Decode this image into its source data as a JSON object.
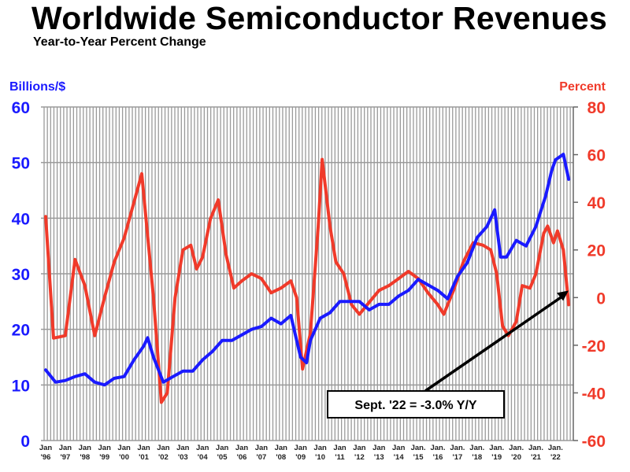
{
  "chart_data": {
    "type": "line",
    "title": "Worldwide Semiconductor Revenues",
    "subtitle": "Year-to-Year Percent Change",
    "y_left_label": "Billions/$",
    "y_right_label": "Percent",
    "y_left_range": [
      0,
      60
    ],
    "y_right_range": [
      -60,
      80
    ],
    "y_left_ticks": [
      "0",
      "10",
      "20",
      "30",
      "40",
      "50",
      "60"
    ],
    "y_right_ticks": [
      "-60",
      "-40",
      "-20",
      "0",
      "20",
      "40",
      "60",
      "80"
    ],
    "x_tick_labels": [
      [
        "Jan",
        "'96"
      ],
      [
        "Jan",
        "'97"
      ],
      [
        "Jan",
        "'98"
      ],
      [
        "Jan",
        "'99"
      ],
      [
        "Jan",
        "'00"
      ],
      [
        "Jan",
        "'01"
      ],
      [
        "Jan",
        "'02"
      ],
      [
        "Jan",
        "'03"
      ],
      [
        "Jan",
        "'04"
      ],
      [
        "Jan",
        "'05"
      ],
      [
        "Jan",
        "'06"
      ],
      [
        "Jan",
        "'07"
      ],
      [
        "Jan",
        "'08"
      ],
      [
        "Jan",
        "'09"
      ],
      [
        "Jan",
        "'10"
      ],
      [
        "Jan",
        "'11"
      ],
      [
        "Jan",
        "'12"
      ],
      [
        "Jan",
        "'13"
      ],
      [
        "Jan",
        "'14"
      ],
      [
        "Jan.",
        "'15"
      ],
      [
        "Jan.",
        "'16"
      ],
      [
        "Jan.",
        "'17"
      ],
      [
        "Jan.",
        "'18"
      ],
      [
        "Jan.",
        "'19"
      ],
      [
        "Jan.",
        "'20"
      ],
      [
        "Jan.",
        "'21"
      ],
      [
        "Jan.",
        "'22"
      ]
    ],
    "grid": "vertical lines plus horizontal at left-axis ticks",
    "colors": {
      "revenue": "#1a1aff",
      "percent": "#f03a2a",
      "grid": "#9a9a9a"
    },
    "series": [
      {
        "axis": "left",
        "x": [
          1996.0,
          1996.5,
          1997.0,
          1997.5,
          1998.0,
          1998.5,
          1999.0,
          1999.5,
          2000.0,
          2000.5,
          2001.0,
          2001.2,
          2001.5,
          2002.0,
          2002.5,
          2003.0,
          2003.5,
          2004.0,
          2004.5,
          2005.0,
          2005.5,
          2006.0,
          2006.5,
          2007.0,
          2007.5,
          2008.0,
          2008.5,
          2009.0,
          2009.3,
          2009.5,
          2010.0,
          2010.5,
          2011.0,
          2011.5,
          2012.0,
          2012.5,
          2013.0,
          2013.5,
          2014.0,
          2014.5,
          2015.0,
          2015.5,
          2016.0,
          2016.5,
          2017.0,
          2017.5,
          2018.0,
          2018.5,
          2018.9,
          2019.2,
          2019.5,
          2020.0,
          2020.5,
          2021.0,
          2021.5,
          2021.8,
          2022.0,
          2022.4,
          2022.67
        ],
        "values": [
          12.7,
          10.5,
          10.8,
          11.5,
          12,
          10.5,
          10,
          11.2,
          11.5,
          14.5,
          17,
          18.5,
          15,
          10.5,
          11.5,
          12.5,
          12.5,
          14.5,
          16,
          18,
          18,
          19,
          20,
          20.5,
          22,
          21,
          22.5,
          15,
          14,
          18,
          22,
          23,
          25,
          25,
          25,
          23.5,
          24.5,
          24.5,
          26,
          27,
          29,
          28,
          27,
          25.5,
          29.5,
          32,
          36.5,
          38.5,
          41.5,
          33,
          33,
          36,
          35,
          38.5,
          44,
          48.5,
          50.5,
          51.5,
          47
        ]
      },
      {
        "axis": "right",
        "x": [
          1996.0,
          1996.4,
          1997.0,
          1997.5,
          1998.0,
          1998.5,
          1999.0,
          1999.5,
          2000.0,
          2000.5,
          2000.9,
          2001.5,
          2001.9,
          2002.2,
          2002.6,
          2003.0,
          2003.4,
          2003.7,
          2004.0,
          2004.4,
          2004.8,
          2005.2,
          2005.6,
          2006.0,
          2006.5,
          2007.0,
          2007.5,
          2008.0,
          2008.5,
          2008.8,
          2009.1,
          2009.5,
          2009.9,
          2010.1,
          2010.5,
          2010.8,
          2011.2,
          2011.6,
          2012.0,
          2012.5,
          2013.0,
          2013.5,
          2014.0,
          2014.5,
          2015.0,
          2015.5,
          2016.0,
          2016.3,
          2016.8,
          2017.3,
          2017.8,
          2018.3,
          2018.7,
          2019.0,
          2019.3,
          2019.6,
          2020.0,
          2020.3,
          2020.7,
          2021.0,
          2021.4,
          2021.6,
          2021.9,
          2022.1,
          2022.4,
          2022.67
        ],
        "values": [
          34,
          -17,
          -16,
          16,
          5,
          -16,
          0,
          15,
          25,
          40,
          52,
          0,
          -44,
          -40,
          0,
          20,
          22,
          12,
          17,
          33,
          41,
          18,
          4,
          7,
          10,
          8,
          2,
          4,
          7,
          0,
          -30,
          -15,
          30,
          58,
          30,
          15,
          10,
          -3,
          -7,
          -2,
          3,
          5,
          8,
          11,
          8,
          2,
          -3,
          -7,
          3,
          15,
          23,
          22,
          20,
          10,
          -12,
          -16,
          -10,
          5,
          4,
          10,
          27,
          30,
          23,
          28,
          20,
          -3
        ]
      }
    ],
    "annotation": {
      "text": "Sept. '22 = -3.0% Y/Y",
      "x": 2022.67,
      "value": -3.0
    }
  }
}
